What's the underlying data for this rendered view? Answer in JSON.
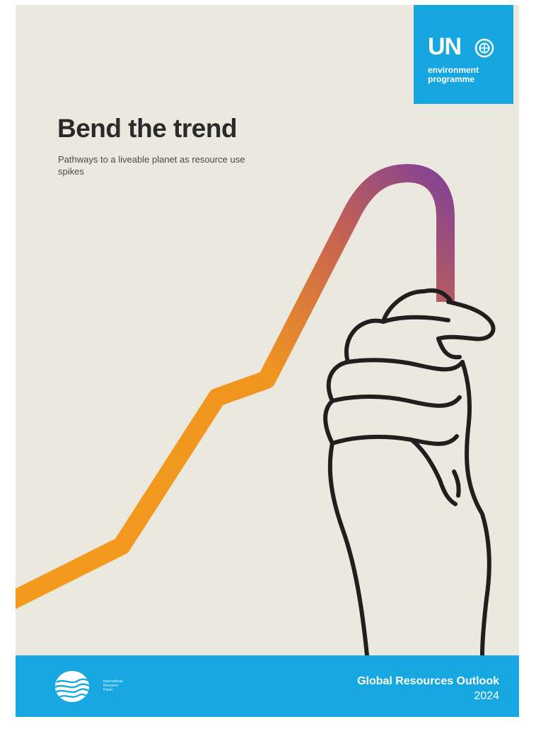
{
  "cover": {
    "title": "Bend the trend",
    "subtitle": "Pathways to a liveable planet as resource use spikes"
  },
  "un_logo": {
    "mark": "UN",
    "text_line1": "environment",
    "text_line2": "programme",
    "emblem_icon": "un-emblem-icon",
    "background_color": "#16a7e0"
  },
  "footer": {
    "publisher_emblem_icon": "international-resource-panel-icon",
    "publisher_line1": "International",
    "publisher_line2": "Resource",
    "publisher_line3": "Panel",
    "report_title": "Global Resources Outlook",
    "report_year": "2024",
    "background_color": "#17a8e1"
  },
  "illustration": {
    "trend_icon": "bending-trend-line",
    "hand_icon": "hand-drawing",
    "trend_colors": [
      "#f39a1e",
      "#c8654f",
      "#7d3e9a"
    ]
  }
}
